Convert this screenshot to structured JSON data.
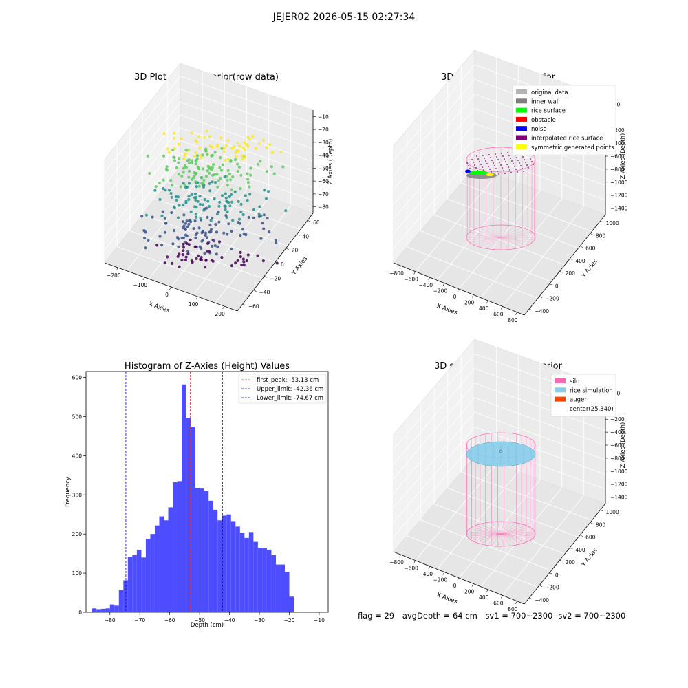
{
  "figure": {
    "suptitle": "JEJER02 2026-05-15 02:27:34",
    "status": {
      "flag": "flag = 29",
      "avg_depth": "avgDepth = 64 cm",
      "sv1": "sv1 = 700~2300",
      "sv2": "sv2 = 700~2300"
    }
  },
  "chart_data": [
    {
      "type": "scatter",
      "projection": "3d",
      "title": "3D Plot of Silo Interior(row data)",
      "xlabel": "X Axies",
      "ylabel": "Y Axies",
      "zlabel": "Z Axies (Depth)",
      "x_ticks": [
        "−200",
        "−100",
        "0",
        "100",
        "200"
      ],
      "y_ticks": [
        "−60",
        "−40",
        "−20",
        "0",
        "20",
        "40",
        "60"
      ],
      "z_ticks": [
        "−10",
        "−20",
        "−30",
        "−40",
        "−50",
        "−60",
        "−70",
        "−80"
      ],
      "xlim": [
        -250,
        200
      ],
      "ylim": [
        -60,
        60
      ],
      "zlim": [
        -88,
        -5
      ],
      "colormap": [
        "#440154",
        "#3b528b",
        "#21918c",
        "#5ec962",
        "#fde725"
      ],
      "grid": true
    },
    {
      "type": "scatter",
      "projection": "3d",
      "title": "3D classify of Silo Interior",
      "xlabel": "X Axies",
      "ylabel": "Y Axies",
      "zlabel": "Z Axies (Depth)",
      "x_ticks": [
        "−800",
        "−600",
        "−400",
        "−200",
        "0",
        "200",
        "400",
        "600",
        "800"
      ],
      "y_ticks": [
        "−400",
        "−200",
        "0",
        "200",
        "400",
        "600",
        "800",
        "1000"
      ],
      "z_ticks": [
        "200",
        "0",
        "−200",
        "−400",
        "−600",
        "−800",
        "−1000",
        "−1200",
        "−1400"
      ],
      "legend_position": "top-right",
      "legend": [
        {
          "label": "original data",
          "color": "#b3b3b3"
        },
        {
          "label": "inner wall",
          "color": "#808080"
        },
        {
          "label": "rice surface",
          "color": "#00ff00"
        },
        {
          "label": "obstacle",
          "color": "#ff0000"
        },
        {
          "label": "noise",
          "color": "#0000ff"
        },
        {
          "label": "interpolated rice surface",
          "color": "#800080"
        },
        {
          "label": "symmetric generated points",
          "color": "#ffff00"
        }
      ],
      "silo_color": "#ff69b4",
      "grid": true
    },
    {
      "type": "bar",
      "title": "Histogram of Z-Axies (Height) Values",
      "xlabel": "Depth (cm)",
      "ylabel": "Frequency",
      "xlim": [
        -88,
        -7
      ],
      "ylim": [
        0,
        615
      ],
      "x_ticks": [
        -80,
        -70,
        -60,
        -50,
        -40,
        -30,
        -20,
        -10
      ],
      "y_ticks": [
        0,
        100,
        200,
        300,
        400,
        500,
        600
      ],
      "bin_start": -86,
      "bin_width": 1.5,
      "values": [
        10,
        8,
        9,
        10,
        20,
        17,
        57,
        82,
        142,
        146,
        160,
        140,
        188,
        200,
        222,
        245,
        235,
        268,
        332,
        335,
        582,
        497,
        474,
        318,
        316,
        310,
        285,
        262,
        235,
        247,
        250,
        233,
        219,
        203,
        190,
        205,
        180,
        165,
        164,
        160,
        146,
        122,
        122,
        103,
        40
      ],
      "bar_color": "#4d4dff",
      "vlines": [
        {
          "label": "first_peak: -53.13 cm",
          "x": -53.13,
          "color": "#e03030"
        },
        {
          "label": "Upper_limit: -42.36 cm",
          "x": -42.36,
          "color": "#0000cc"
        },
        {
          "label": "Lower_limit: -74.67 cm",
          "x": -74.67,
          "color": "#0000cc"
        }
      ],
      "legend_position": "top-right"
    },
    {
      "type": "scatter",
      "projection": "3d",
      "title": "3D simulation of Silo Interior",
      "xlabel": "X Axies",
      "ylabel": "Y Axies",
      "zlabel": "Z Axies (Depth)",
      "x_ticks": [
        "−800",
        "−600",
        "−400",
        "−200",
        "0",
        "200",
        "400",
        "600",
        "800"
      ],
      "y_ticks": [
        "−400",
        "−200",
        "0",
        "200",
        "400",
        "600",
        "800",
        "1000"
      ],
      "z_ticks": [
        "200",
        "0",
        "−200",
        "−400",
        "−600",
        "−800",
        "−1000",
        "−1200",
        "−1400"
      ],
      "legend_position": "top-right",
      "legend": [
        {
          "label": "silo",
          "color": "#ff69b4"
        },
        {
          "label": "rice simulation",
          "color": "#87ceeb"
        },
        {
          "label": "auger",
          "color": "#ff4500"
        },
        {
          "label": "center(25,340)",
          "color": ""
        }
      ],
      "silo_color": "#ff69b4",
      "rice_color": "#87ceeb",
      "grid": true
    }
  ]
}
